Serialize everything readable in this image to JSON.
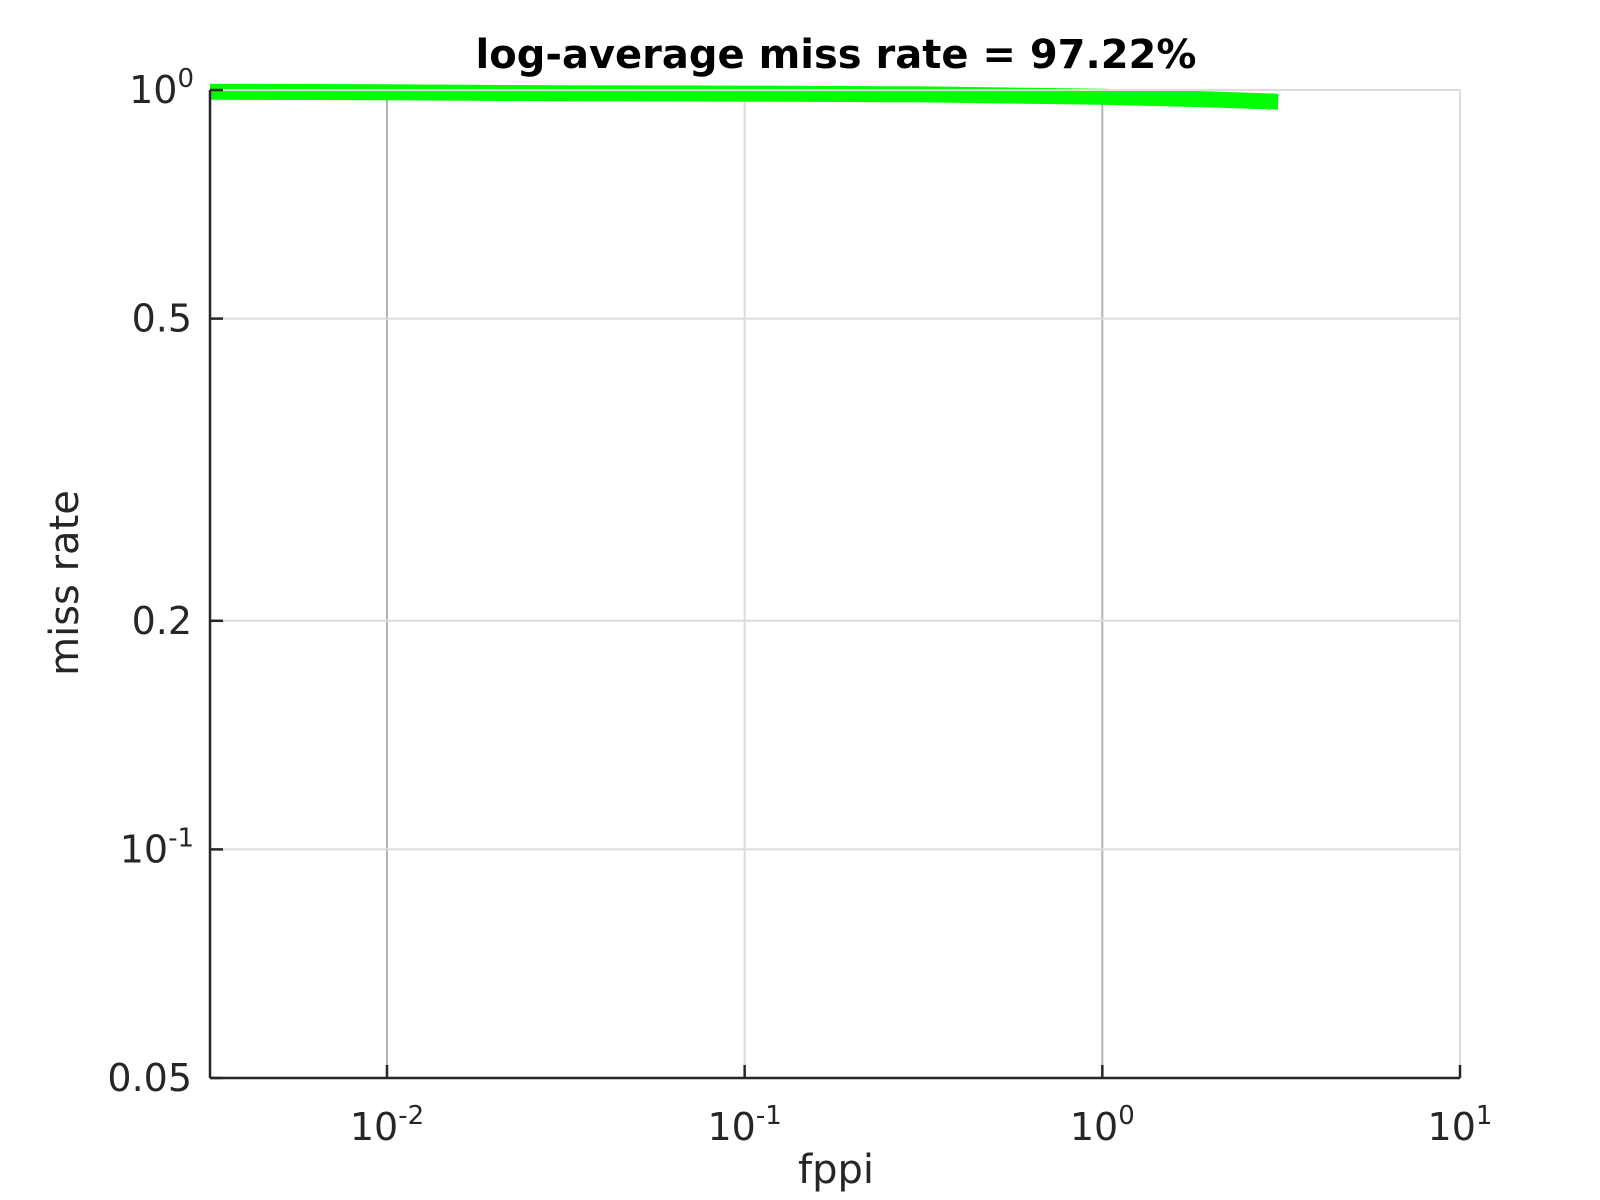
{
  "chart_data": {
    "type": "line",
    "title": "log-average miss rate = 97.22%",
    "xlabel": "fppi",
    "ylabel": "miss rate",
    "x_scale": "log",
    "y_scale": "log",
    "xlim": [
      0.0032,
      10
    ],
    "ylim": [
      0.05,
      1
    ],
    "grid": true,
    "x_ticks": [
      {
        "value": 0.01,
        "base": "10",
        "exp": "-2"
      },
      {
        "value": 0.1,
        "base": "10",
        "exp": "-1"
      },
      {
        "value": 1,
        "base": "10",
        "exp": "0"
      },
      {
        "value": 10,
        "base": "10",
        "exp": "1"
      }
    ],
    "y_ticks": [
      {
        "value": 0.05,
        "base": "0.05",
        "exp": ""
      },
      {
        "value": 0.1,
        "base": "10",
        "exp": "-1"
      },
      {
        "value": 0.2,
        "base": "0.2",
        "exp": ""
      },
      {
        "value": 0.5,
        "base": "0.5",
        "exp": ""
      },
      {
        "value": 1,
        "base": "10",
        "exp": "0"
      }
    ],
    "series": [
      {
        "color": "#00ff00",
        "x": [
          0.0032,
          0.01,
          0.03,
          0.1,
          0.3,
          1,
          2,
          3.1
        ],
        "y": [
          0.995,
          0.993,
          0.99,
          0.989,
          0.987,
          0.98,
          0.972,
          0.965
        ]
      }
    ]
  },
  "colors": {
    "axis": "#262626",
    "grid": "#dcdcdc",
    "major_grid": "#b3b3b3"
  }
}
